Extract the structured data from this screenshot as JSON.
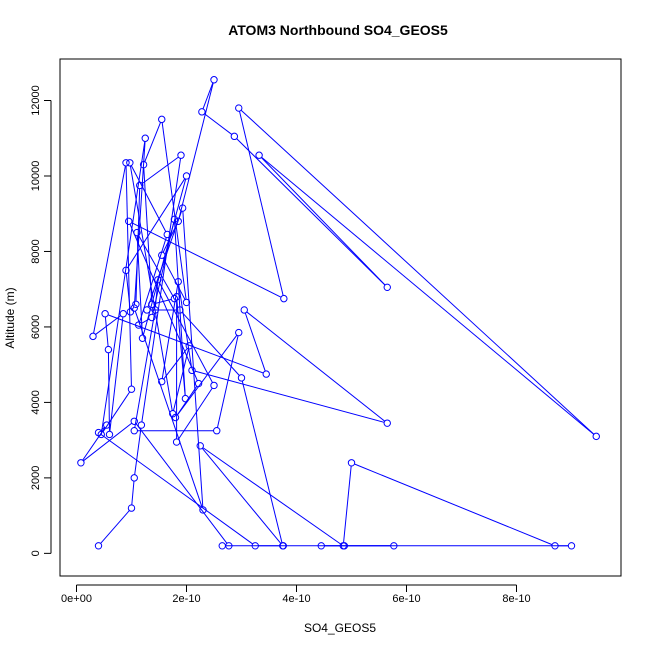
{
  "chart_data": {
    "type": "line",
    "title": "ATOM3 Northbound SO4_GEOS5",
    "xlabel": "SO4_GEOS5",
    "ylabel": "Altitude (m)",
    "xlim": [
      -3e-11,
      9.9e-10
    ],
    "ylim": [
      -600,
      13100
    ],
    "x_ticks": [
      {
        "value": 0,
        "label": "0e+00"
      },
      {
        "value": 2e-10,
        "label": "2e-10"
      },
      {
        "value": 4e-10,
        "label": "4e-10"
      },
      {
        "value": 6e-10,
        "label": "6e-10"
      },
      {
        "value": 8e-10,
        "label": "8e-10"
      }
    ],
    "y_ticks": [
      {
        "value": 0,
        "label": "0"
      },
      {
        "value": 2000,
        "label": "2000"
      },
      {
        "value": 4000,
        "label": "4000"
      },
      {
        "value": 6000,
        "label": "6000"
      },
      {
        "value": 8000,
        "label": "8000"
      },
      {
        "value": 10000,
        "label": "10000"
      },
      {
        "value": 12000,
        "label": "12000"
      }
    ],
    "grid": false,
    "legend": "none",
    "marker": "open-circle",
    "color": "#0000ff",
    "x": [
      4e-11,
      1e-10,
      1.05e-10,
      1.18e-10,
      1.9e-10,
      1.15e-10,
      1.08e-10,
      9.8e-11,
      9e-11,
      2e-10,
      1.2e-10,
      1.1e-10,
      1.78e-10,
      1.37e-10,
      1.22e-10,
      1.55e-10,
      2e-10,
      1.55e-10,
      1.85e-10,
      2.5e-10,
      2.28e-10,
      2.87e-10,
      5.65e-10,
      3.32e-10,
      9.45e-10,
      2.95e-10,
      3.77e-10,
      9.5e-11,
      2.22e-10,
      1.8e-10,
      2.95e-10,
      2.55e-10,
      1.05e-10,
      1.43e-10,
      1.48e-10,
      2.5e-10,
      1.82e-10,
      1.82e-10,
      1.98e-10,
      1.78e-10,
      1.37e-10,
      1.13e-10,
      1.65e-10,
      9.7e-11,
      1.75e-10,
      2.05e-10,
      1.55e-10,
      1.85e-10,
      2.1e-10,
      5.65e-10,
      3.05e-10,
      3.45e-10,
      5.2e-11,
      5.8e-11,
      6e-11,
      8.5e-11,
      3e-11,
      9e-11,
      1e-10,
      4.5e-11,
      1.25e-10,
      1.05e-10,
      2.3e-10,
      1.93e-10,
      1.28e-10,
      1.88e-10,
      3e-10,
      3.75e-10,
      2.25e-10,
      4.85e-10,
      5e-10,
      8.7e-10,
      9e-10,
      4.87e-10,
      4.45e-10,
      5.77e-10,
      2.65e-10,
      2.77e-10,
      1.05e-10,
      8e-12,
      5.5e-11,
      4e-11,
      3.25e-10,
      3.76e-10
    ],
    "y": [
      200,
      1200,
      2000,
      3400,
      10550,
      9750,
      6600,
      6400,
      7500,
      10000,
      5700,
      8500,
      6750,
      6600,
      10300,
      11500,
      6650,
      7900,
      8800,
      12550,
      11700,
      11050,
      7050,
      10550,
      3100,
      11800,
      6750,
      8800,
      4500,
      3600,
      5850,
      3250,
      3250,
      6450,
      7250,
      4450,
      2950,
      6800,
      4100,
      8850,
      6250,
      6050,
      8450,
      10350,
      3700,
      5500,
      4550,
      7200,
      4850,
      3450,
      6450,
      4750,
      6350,
      5400,
      3150,
      6350,
      5750,
      10350,
      4350,
      3150,
      11000,
      6500,
      1150,
      9150,
      6450,
      6450,
      4650,
      200,
      2850,
      200,
      2400,
      200,
      200,
      200,
      200,
      200,
      200,
      200,
      3500,
      2400,
      3400,
      3200,
      200,
      200
    ]
  }
}
